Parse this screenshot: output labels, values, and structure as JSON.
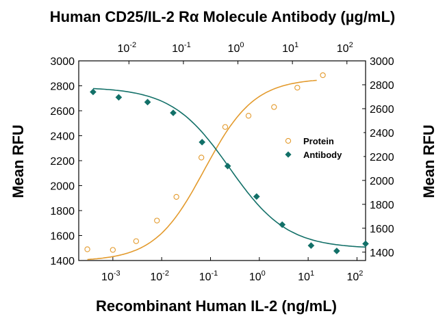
{
  "chart_data": {
    "type": "scatter",
    "title": "Human CD25/IL-2 Rα Molecule Antibody (µg/mL)",
    "xlabel": "Recombinant Human IL-2 (ng/mL)",
    "ylabel_left": "Mean RFU",
    "ylabel_right": "Mean RFU",
    "x_scale": "log",
    "x_bottom": {
      "range": [
        0.0002,
        150
      ],
      "ticks": [
        {
          "value": 0.001,
          "base": "10",
          "exp": "-3"
        },
        {
          "value": 0.01,
          "base": "10",
          "exp": "-2"
        },
        {
          "value": 0.1,
          "base": "10",
          "exp": "-1"
        },
        {
          "value": 1,
          "base": "10",
          "exp": "0"
        },
        {
          "value": 10,
          "base": "10",
          "exp": "1"
        },
        {
          "value": 100,
          "base": "10",
          "exp": "2"
        }
      ]
    },
    "x_top": {
      "range": [
        0.0012,
        220
      ],
      "ticks": [
        {
          "value": 0.01,
          "base": "10",
          "exp": "-2"
        },
        {
          "value": 0.1,
          "base": "10",
          "exp": "-1"
        },
        {
          "value": 1,
          "base": "10",
          "exp": "0"
        },
        {
          "value": 10,
          "base": "10",
          "exp": "1"
        },
        {
          "value": 100,
          "base": "10",
          "exp": "2"
        }
      ]
    },
    "y_left": {
      "range": [
        1400,
        3000
      ],
      "ticks": [
        "1400",
        "1600",
        "1800",
        "2000",
        "2200",
        "2400",
        "2600",
        "2800",
        "3000"
      ]
    },
    "y_right": {
      "range": [
        1330,
        3000
      ],
      "ticks": [
        "1400",
        "1600",
        "1800",
        "2000",
        "2200",
        "2400",
        "2600",
        "2800",
        "3000"
      ]
    },
    "legend": {
      "placement": "right",
      "entries": [
        {
          "label": "Protein",
          "marker": "circle-open",
          "color": "#E39A2C"
        },
        {
          "label": "Antibody",
          "marker": "diamond",
          "color": "#127068"
        }
      ]
    },
    "series": [
      {
        "name": "Protein",
        "axis": "bottom-left",
        "marker": "circle-open",
        "color": "#E39A2C",
        "x": [
          0.0003,
          0.001,
          0.003,
          0.008,
          0.02,
          0.065,
          0.2,
          0.6,
          2,
          6,
          20
        ],
        "y": [
          1490,
          1485,
          1555,
          1720,
          1910,
          2225,
          2470,
          2560,
          2630,
          2785,
          2885
        ],
        "fit": {
          "bottom": 1395,
          "top": 2860,
          "ec50": 0.075,
          "hill": 0.85,
          "x_from": 0.0003,
          "x_to": 15
        }
      },
      {
        "name": "Antibody",
        "axis": "top-right",
        "marker": "diamond",
        "color": "#127068",
        "x": [
          0.0022,
          0.0065,
          0.022,
          0.065,
          0.22,
          0.65,
          2.2,
          6.5,
          22,
          65,
          220
        ],
        "y": [
          2740,
          2695,
          2655,
          2565,
          2320,
          2120,
          1865,
          1630,
          1455,
          1410,
          1470
        ],
        "fit": {
          "bottom": 1430,
          "top": 2780,
          "ec50": 0.7,
          "hill": 0.82,
          "x_from": 0.0022,
          "x_to": 220
        }
      }
    ],
    "grid": false,
    "colors": {
      "protein": "#E39A2C",
      "antibody": "#127068",
      "axis": "#000000"
    }
  }
}
